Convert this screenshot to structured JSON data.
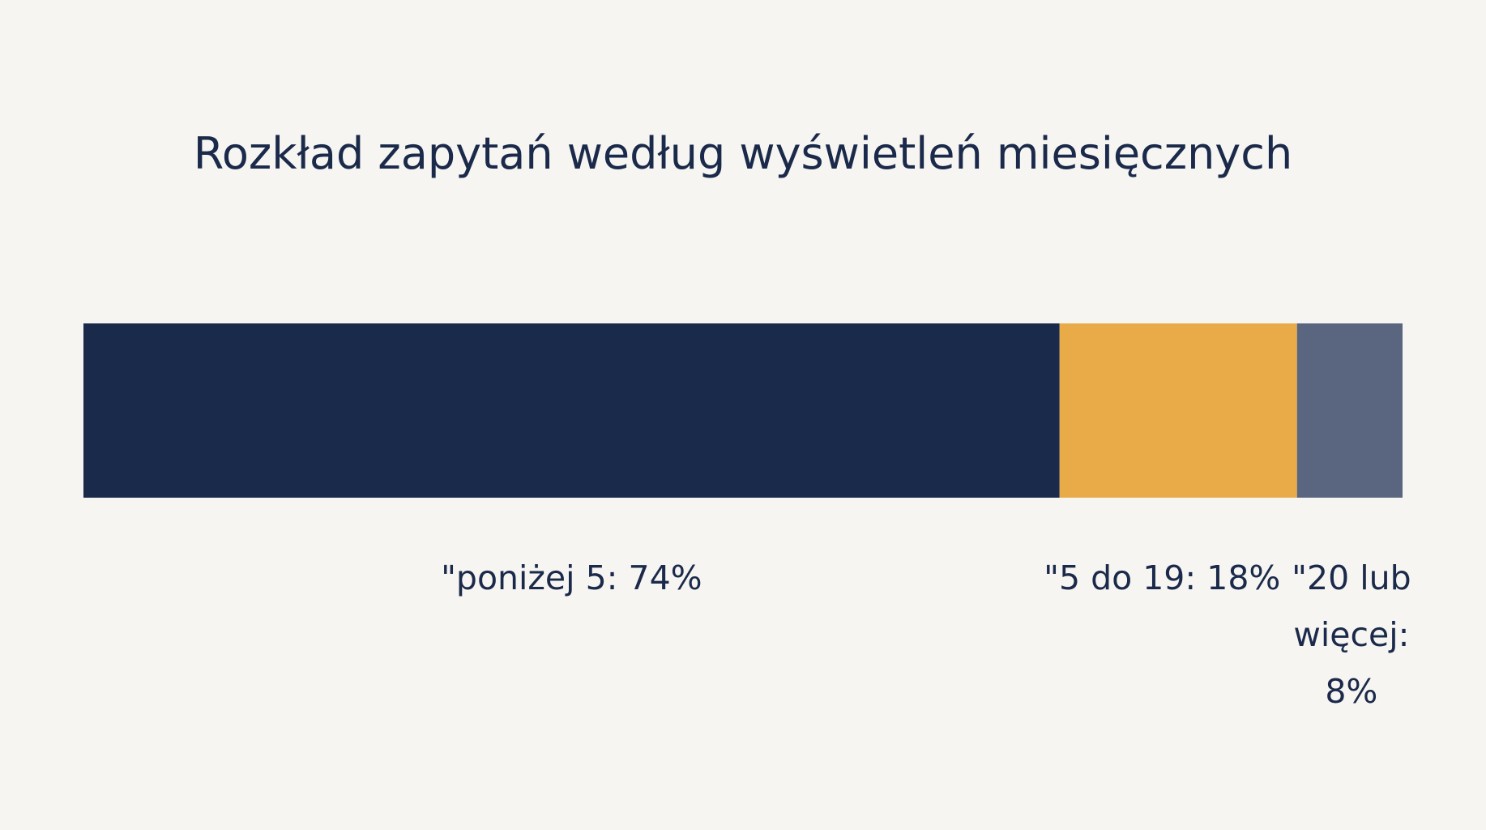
{
  "chart_data": {
    "type": "bar",
    "stacked": true,
    "orientation": "horizontal",
    "title": "Rozkład zapytań według wyświetleń miesięcznych",
    "unit": "%",
    "series": [
      {
        "name": "poniżej 5",
        "value": 74,
        "color": "#1a2a4a",
        "label": "\"poniżej 5: 74%"
      },
      {
        "name": "5 do 19",
        "value": 18,
        "color": "#e9aa48",
        "label": "\"5 do 19: 18%"
      },
      {
        "name": "20 lub więcej",
        "value": 8,
        "color": "#5a6680",
        "label": "\"20 lub więcej: 8%"
      }
    ]
  }
}
